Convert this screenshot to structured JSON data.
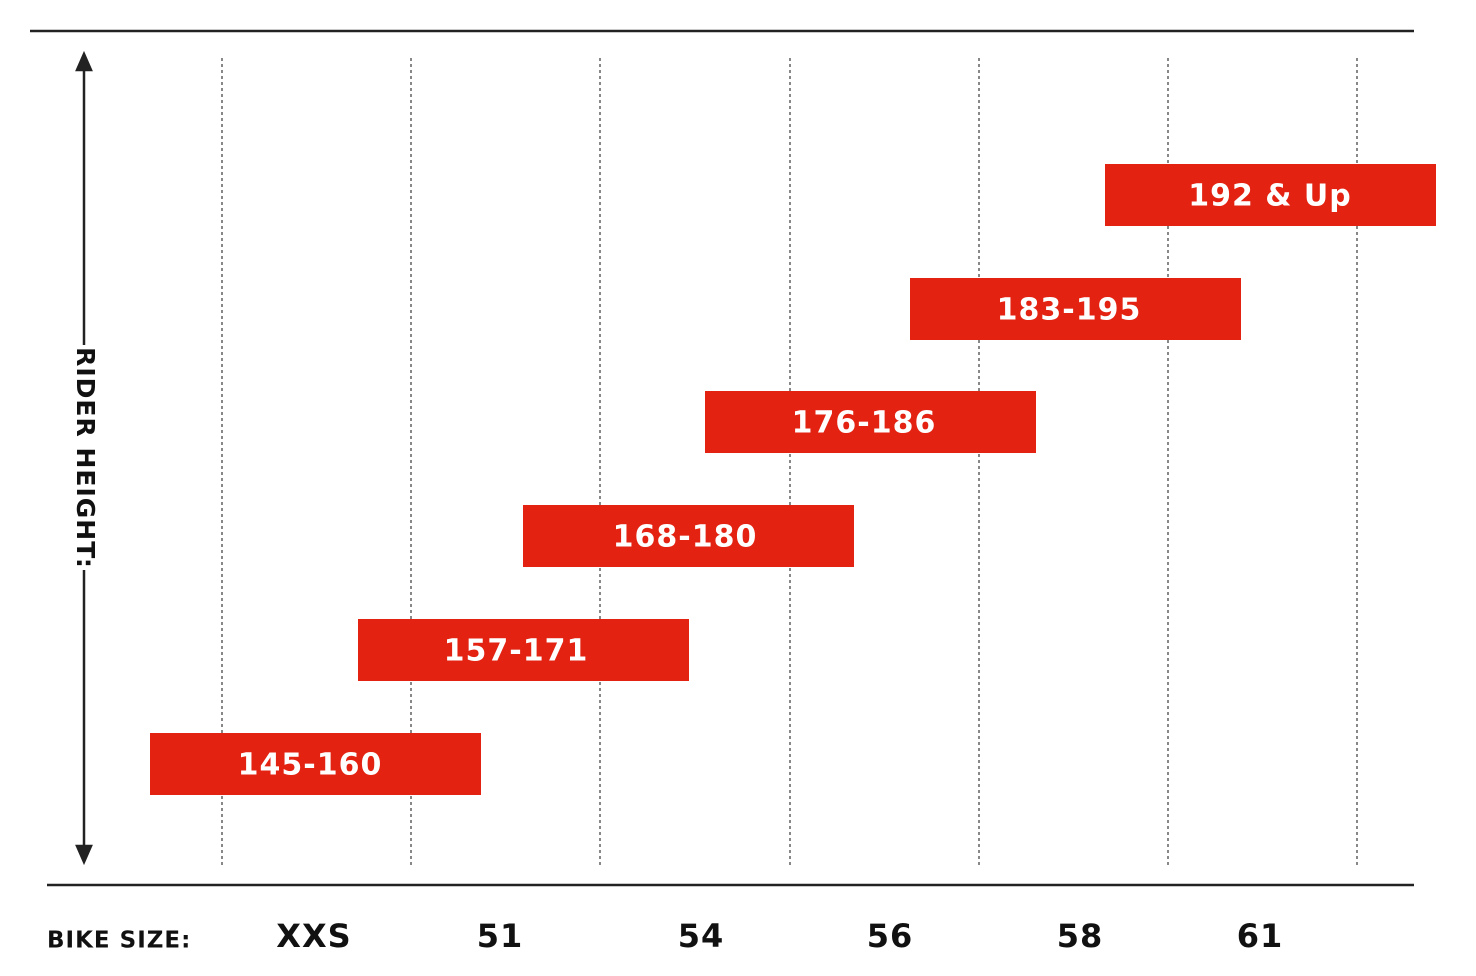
{
  "axis": {
    "vertical_label": "RIDER HEIGHT:",
    "horizontal_label": "BIKE SIZE:"
  },
  "sizes": [
    "XXS",
    "51",
    "54",
    "56",
    "58",
    "61"
  ],
  "rider_heights": [
    "145-160",
    "157-171",
    "168-180",
    "176-186",
    "183-195",
    "192 & Up"
  ]
}
